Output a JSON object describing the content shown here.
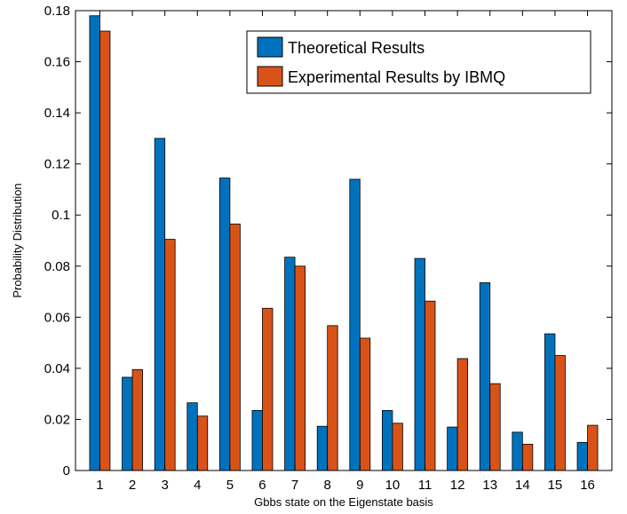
{
  "chart_data": {
    "type": "bar",
    "categories": [
      "1",
      "2",
      "3",
      "4",
      "5",
      "6",
      "7",
      "8",
      "9",
      "10",
      "11",
      "12",
      "13",
      "14",
      "15",
      "16"
    ],
    "series": [
      {
        "name": "Theoretical Results",
        "color": "#0072BD",
        "values": [
          0.178,
          0.0365,
          0.13,
          0.0265,
          0.1145,
          0.0235,
          0.0835,
          0.0173,
          0.114,
          0.0235,
          0.083,
          0.017,
          0.0735,
          0.015,
          0.0535,
          0.011
        ]
      },
      {
        "name": "Experimental Results by IBMQ",
        "color": "#D95319",
        "values": [
          0.172,
          0.0395,
          0.0905,
          0.0213,
          0.0965,
          0.0635,
          0.08,
          0.0567,
          0.0518,
          0.0185,
          0.0663,
          0.0438,
          0.034,
          0.0103,
          0.045,
          0.0177
        ]
      }
    ],
    "xlabel": "Gbbs state on the Eigenstate basis",
    "ylabel": "Probability Distribution",
    "ylim": [
      0,
      0.18
    ],
    "yticks": [
      "0",
      "0.02",
      "0.04",
      "0.06",
      "0.08",
      "0.1",
      "0.12",
      "0.14",
      "0.16",
      "0.18"
    ],
    "grid": false,
    "legend_position": "top-right"
  }
}
